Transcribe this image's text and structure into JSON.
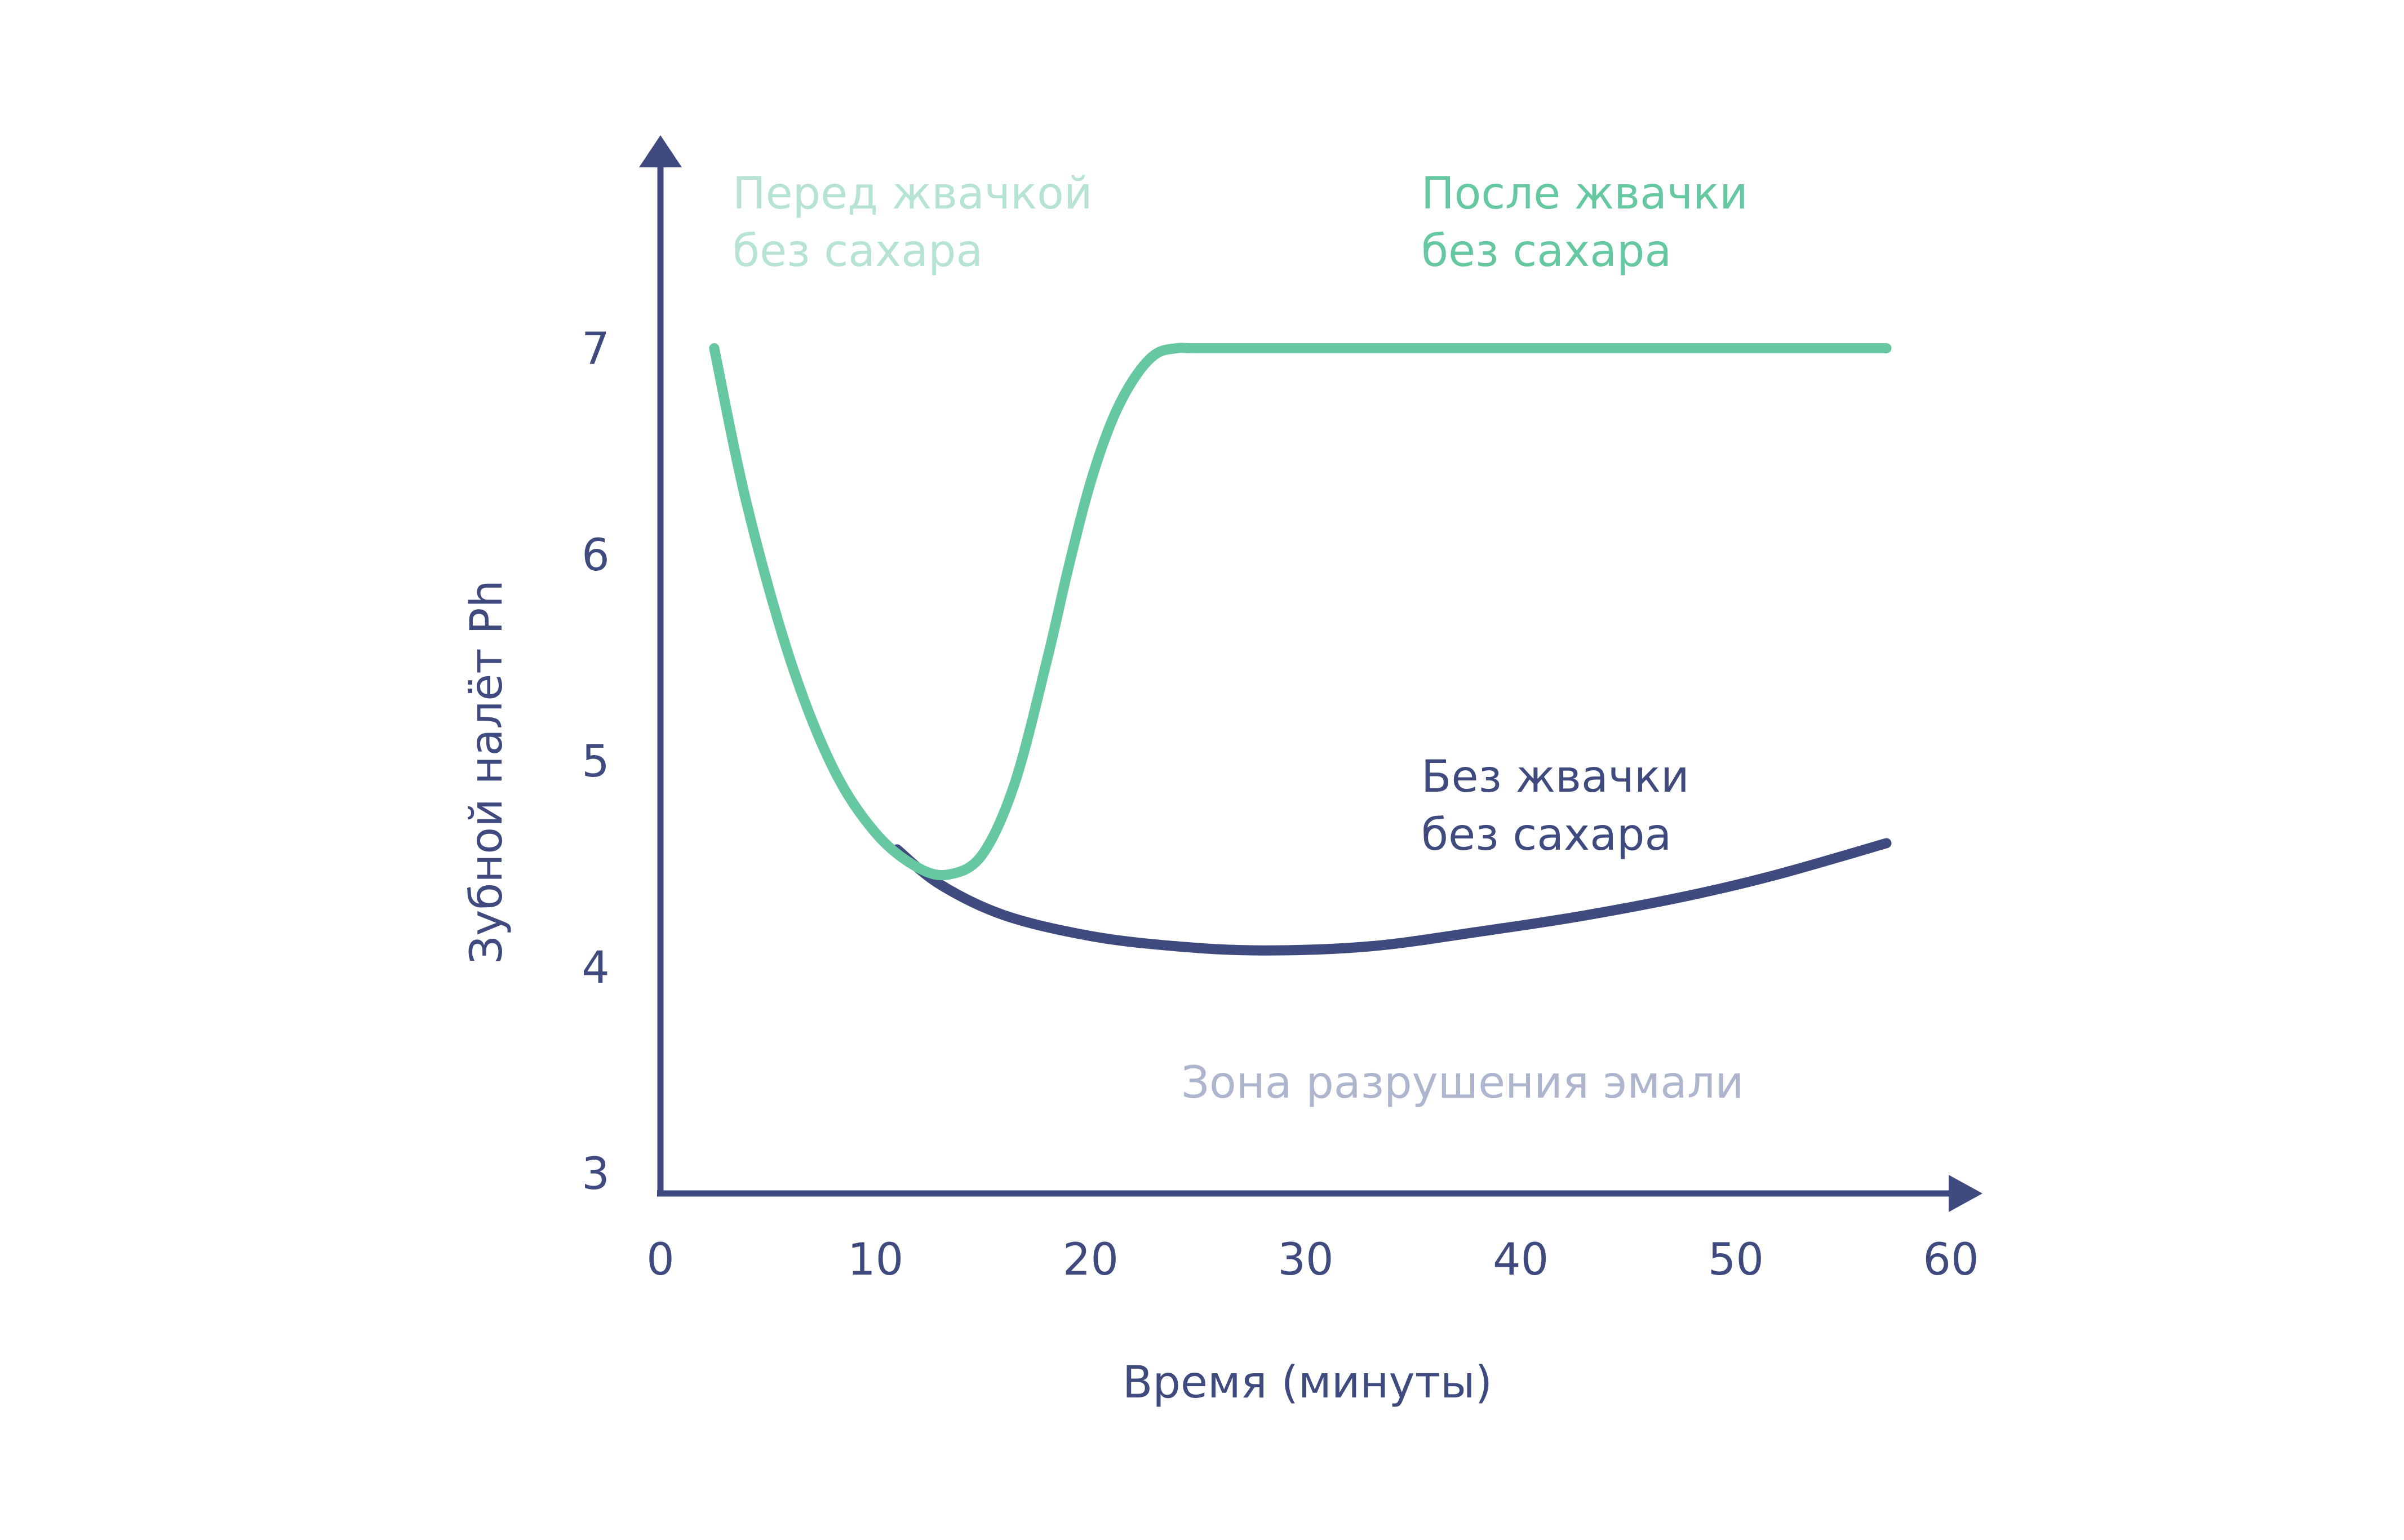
{
  "chart_data": {
    "type": "line",
    "title": "",
    "xlabel": "Время (минуты)",
    "ylabel": "Зубной налёт Ph",
    "xlim": [
      0,
      60
    ],
    "ylim": [
      3,
      7.8
    ],
    "x_ticks": [
      "0",
      "10",
      "20",
      "30",
      "40",
      "50",
      "60"
    ],
    "y_ticks": [
      "3",
      "4",
      "5",
      "6",
      "7"
    ],
    "grid": false,
    "legend": "none",
    "series": [
      {
        "name": "Без жвачки без сахара",
        "color": "#3F4A7E",
        "x": [
          11,
          13,
          16,
          20,
          24,
          28,
          33,
          38,
          43,
          48,
          52,
          57
        ],
        "y": [
          4.57,
          4.4,
          4.25,
          4.15,
          4.1,
          4.08,
          4.1,
          4.17,
          4.25,
          4.35,
          4.45,
          4.6
        ]
      },
      {
        "name": "После жвачки без сахара",
        "color": "#66C8A0",
        "x": [
          2.5,
          4,
          6,
          8,
          10,
          12,
          13.5,
          15,
          16.5,
          18,
          19,
          20,
          21,
          22,
          23,
          24,
          25,
          30,
          40,
          50,
          57
        ],
        "y": [
          7.0,
          6.25,
          5.5,
          4.97,
          4.65,
          4.48,
          4.45,
          4.55,
          4.9,
          5.5,
          5.95,
          6.35,
          6.65,
          6.85,
          6.97,
          7.0,
          7.0,
          7.0,
          7.0,
          7.0,
          7.0
        ]
      }
    ],
    "annotations": {
      "before_line1": "Перед жвачкой",
      "before_line2": "без сахара",
      "after_line1": "После жвачки",
      "after_line2": "без сахара",
      "without_line1": "Без жвачки",
      "without_line2": "без сахара",
      "zone": "Зона разрушения эмали"
    },
    "colors": {
      "axis": "#3F4A7E",
      "green": "#66C8A0",
      "light_green": "#B7E4D2",
      "zone": "#AEB5CE"
    }
  }
}
